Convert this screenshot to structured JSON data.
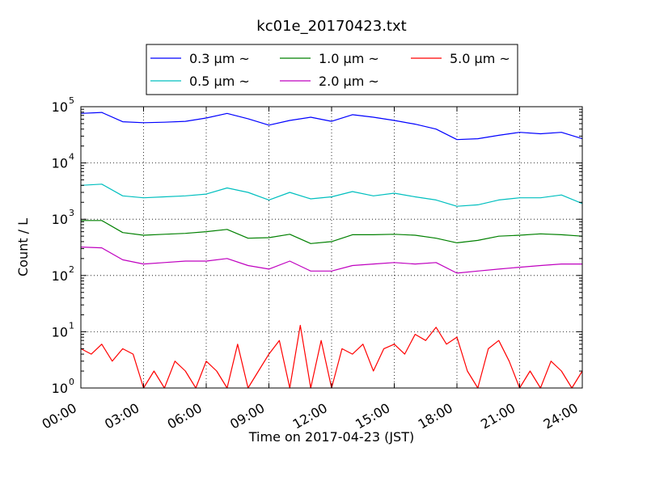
{
  "chart_data": {
    "type": "line",
    "title": "kc01e_20170423.txt",
    "xlabel": "Time on 2017-04-23 (JST)",
    "ylabel": "Count / L",
    "x_scale": "linear",
    "y_scale": "log",
    "xlim": [
      "00:00",
      "24:00"
    ],
    "ylim": [
      1,
      100000
    ],
    "grid": true,
    "legend_position": "top-center",
    "x_tick_labels": [
      "00:00",
      "03:00",
      "06:00",
      "09:00",
      "12:00",
      "15:00",
      "18:00",
      "21:00",
      "24:00"
    ],
    "y_tick_labels": [
      {
        "base": "10",
        "exp": "0"
      },
      {
        "base": "10",
        "exp": "1"
      },
      {
        "base": "10",
        "exp": "2"
      },
      {
        "base": "10",
        "exp": "3"
      },
      {
        "base": "10",
        "exp": "4"
      },
      {
        "base": "10",
        "exp": "5"
      }
    ],
    "series": [
      {
        "name": "0.3 μm ~",
        "color": "#0000ff",
        "x": [
          "00:00",
          "01:00",
          "02:00",
          "03:00",
          "04:00",
          "05:00",
          "06:00",
          "07:00",
          "08:00",
          "09:00",
          "10:00",
          "11:00",
          "12:00",
          "13:00",
          "14:00",
          "15:00",
          "16:00",
          "17:00",
          "18:00",
          "19:00",
          "20:00",
          "21:00",
          "22:00",
          "23:00",
          "24:00"
        ],
        "y": [
          76000,
          79000,
          54000,
          52000,
          53000,
          55000,
          63000,
          76000,
          61000,
          47000,
          57000,
          65000,
          55000,
          72000,
          65000,
          57000,
          49000,
          40000,
          26000,
          27000,
          31000,
          35000,
          33000,
          35000,
          27000
        ]
      },
      {
        "name": "0.5 μm ~",
        "color": "#00bfbf",
        "x": [
          "00:00",
          "01:00",
          "02:00",
          "03:00",
          "04:00",
          "05:00",
          "06:00",
          "07:00",
          "08:00",
          "09:00",
          "10:00",
          "11:00",
          "12:00",
          "13:00",
          "14:00",
          "15:00",
          "16:00",
          "17:00",
          "18:00",
          "19:00",
          "20:00",
          "21:00",
          "22:00",
          "23:00",
          "24:00"
        ],
        "y": [
          4000,
          4200,
          2600,
          2400,
          2500,
          2600,
          2800,
          3600,
          3000,
          2200,
          3000,
          2300,
          2500,
          3100,
          2600,
          2900,
          2500,
          2200,
          1700,
          1800,
          2200,
          2400,
          2400,
          2700,
          1900
        ]
      },
      {
        "name": "1.0 μm ~",
        "color": "#008000",
        "x": [
          "00:00",
          "01:00",
          "02:00",
          "03:00",
          "04:00",
          "05:00",
          "06:00",
          "07:00",
          "08:00",
          "09:00",
          "10:00",
          "11:00",
          "12:00",
          "13:00",
          "14:00",
          "15:00",
          "16:00",
          "17:00",
          "18:00",
          "19:00",
          "20:00",
          "21:00",
          "22:00",
          "23:00",
          "24:00"
        ],
        "y": [
          950,
          950,
          580,
          520,
          540,
          560,
          600,
          660,
          460,
          470,
          540,
          370,
          400,
          530,
          530,
          540,
          520,
          460,
          380,
          420,
          500,
          520,
          550,
          530,
          500
        ]
      },
      {
        "name": "2.0 μm ~",
        "color": "#bf00bf",
        "x": [
          "00:00",
          "01:00",
          "02:00",
          "03:00",
          "04:00",
          "05:00",
          "06:00",
          "07:00",
          "08:00",
          "09:00",
          "10:00",
          "11:00",
          "12:00",
          "13:00",
          "14:00",
          "15:00",
          "16:00",
          "17:00",
          "18:00",
          "19:00",
          "20:00",
          "21:00",
          "22:00",
          "23:00",
          "24:00"
        ],
        "y": [
          320,
          310,
          190,
          160,
          170,
          180,
          180,
          200,
          150,
          130,
          180,
          120,
          120,
          150,
          160,
          170,
          160,
          170,
          110,
          120,
          130,
          140,
          150,
          160,
          160
        ]
      },
      {
        "name": "5.0 μm ~",
        "color": "#ff0000",
        "x": [
          "00:00",
          "00:30",
          "01:00",
          "01:30",
          "02:00",
          "02:30",
          "03:00",
          "03:30",
          "04:00",
          "04:30",
          "05:00",
          "05:30",
          "06:00",
          "06:30",
          "07:00",
          "07:30",
          "08:00",
          "08:30",
          "09:00",
          "09:30",
          "10:00",
          "10:30",
          "11:00",
          "11:30",
          "12:00",
          "12:30",
          "13:00",
          "13:30",
          "14:00",
          "14:30",
          "15:00",
          "15:30",
          "16:00",
          "16:30",
          "17:00",
          "17:30",
          "18:00",
          "18:30",
          "19:00",
          "19:30",
          "20:00",
          "20:30",
          "21:00",
          "21:30",
          "22:00",
          "22:30",
          "23:00",
          "23:30",
          "24:00"
        ],
        "y": [
          5,
          4,
          6,
          3,
          5,
          4,
          1,
          2,
          1,
          3,
          2,
          1,
          3,
          2,
          1,
          6,
          1,
          2,
          4,
          7,
          1,
          13,
          1,
          7,
          1,
          5,
          4,
          6,
          2,
          5,
          6,
          4,
          9,
          7,
          12,
          6,
          8,
          2,
          1,
          5,
          7,
          3,
          1,
          2,
          1,
          3,
          2,
          1,
          2
        ]
      }
    ]
  }
}
